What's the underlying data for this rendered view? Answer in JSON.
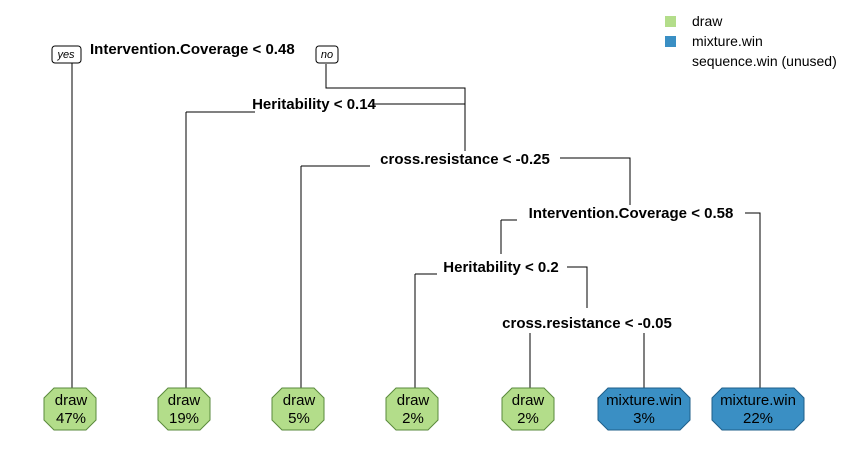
{
  "colors": {
    "draw": "#b3dd8a",
    "draw_border": "#5a8a3c",
    "mixture": "#3a8fc4",
    "mixture_border": "#1f5f8a"
  },
  "legend": [
    {
      "label": "draw",
      "color": "#b3dd8a"
    },
    {
      "label": "mixture.win",
      "color": "#3a8fc4"
    },
    {
      "label": "sequence.win (unused)",
      "color": null
    }
  ],
  "yes_label": "yes",
  "no_label": "no",
  "splits": [
    "Intervention.Coverage < 0.48",
    "Heritability < 0.14",
    "cross.resistance < -0.25",
    "Intervention.Coverage < 0.58",
    "Heritability < 0.2",
    "cross.resistance < -0.05"
  ],
  "leaves": [
    {
      "class": "draw",
      "pct": "47%"
    },
    {
      "class": "draw",
      "pct": "19%"
    },
    {
      "class": "draw",
      "pct": "5%"
    },
    {
      "class": "draw",
      "pct": "2%"
    },
    {
      "class": "draw",
      "pct": "2%"
    },
    {
      "class": "mixture.win",
      "pct": "3%"
    },
    {
      "class": "mixture.win",
      "pct": "22%"
    }
  ]
}
